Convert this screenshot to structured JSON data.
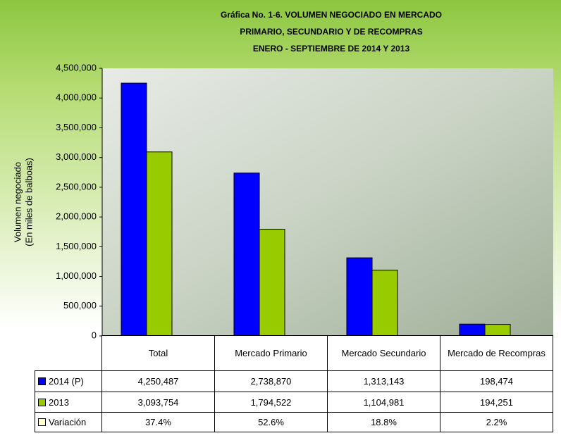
{
  "chart_data": {
    "type": "bar",
    "title": [
      "Gráfica No. 1-6.  VOLUMEN NEGOCIADO EN  MERCADO",
      "PRIMARIO, SECUNDARIO Y DE RECOMPRAS",
      "ENERO - SEPTIEMBRE DE 2014 Y 2013"
    ],
    "y_label": [
      "Volumen negociado",
      "(En miles de balboas)"
    ],
    "categories": [
      "Total",
      "Mercado Primario",
      "Mercado Secundario",
      "Mercado de Recompras"
    ],
    "series": [
      {
        "name": "2014 (P)",
        "color": "#0000ff",
        "values": [
          4250487,
          2738870,
          1313143,
          198474
        ],
        "value_labels": [
          "4,250,487",
          "2,738,870",
          "1,313,143",
          "198,474"
        ]
      },
      {
        "name": "2013",
        "color": "#99cc00",
        "values": [
          3093754,
          1794522,
          1104981,
          194251
        ],
        "value_labels": [
          "3,093,754",
          "1,794,522",
          "1,104,981",
          "194,251"
        ]
      }
    ],
    "variation": {
      "name": "Variación",
      "color": "#ffffcc",
      "values": [
        37.4,
        52.6,
        18.8,
        2.2
      ],
      "value_labels": [
        "37.4%",
        "52.6%",
        "18.8%",
        "2.2%"
      ]
    },
    "ylim": [
      0,
      4500000
    ],
    "yticks": [
      0,
      {
        "value": 500000,
        "label": "500,000"
      },
      {
        "value": 1000000,
        "label": "1,000,000"
      },
      {
        "value": 1500000,
        "label": "1,500,000"
      },
      {
        "value": 2000000,
        "label": "2,000,000"
      },
      {
        "value": 2500000,
        "label": "2,500,000"
      },
      {
        "value": 3000000,
        "label": "3,000,000"
      },
      {
        "value": 3500000,
        "label": "3,500,000"
      },
      {
        "value": 4000000,
        "label": "4,000,000"
      },
      {
        "value": 4500000,
        "label": "4,500,000"
      }
    ]
  }
}
